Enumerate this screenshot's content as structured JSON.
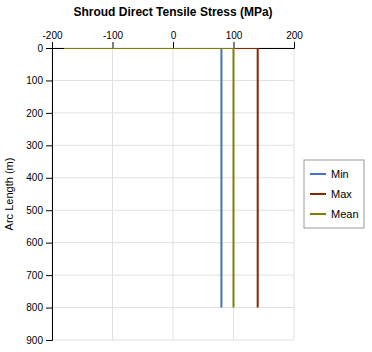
{
  "chart_data": {
    "type": "line",
    "title": "Shroud Direct Tensile Stress (MPa)",
    "y_label": "Arc Length (m)",
    "xlim": [
      -200,
      200
    ],
    "xticks": [
      -200,
      -100,
      0,
      100,
      200
    ],
    "ylim": [
      900,
      0
    ],
    "yticks": [
      0,
      100,
      200,
      300,
      400,
      500,
      600,
      700,
      800,
      900
    ],
    "grid": true,
    "legend": "right",
    "series": [
      {
        "name": "Min",
        "color": "#4472C4",
        "x": [
          -180,
          80,
          80
        ],
        "values": [
          0,
          0,
          800
        ]
      },
      {
        "name": "Max",
        "color": "#8B2500",
        "x": [
          -180,
          140,
          140
        ],
        "values": [
          0,
          0,
          800
        ]
      },
      {
        "name": "Mean",
        "color": "#808000",
        "x": [
          -180,
          100,
          100
        ],
        "values": [
          0,
          0,
          800
        ]
      }
    ]
  }
}
